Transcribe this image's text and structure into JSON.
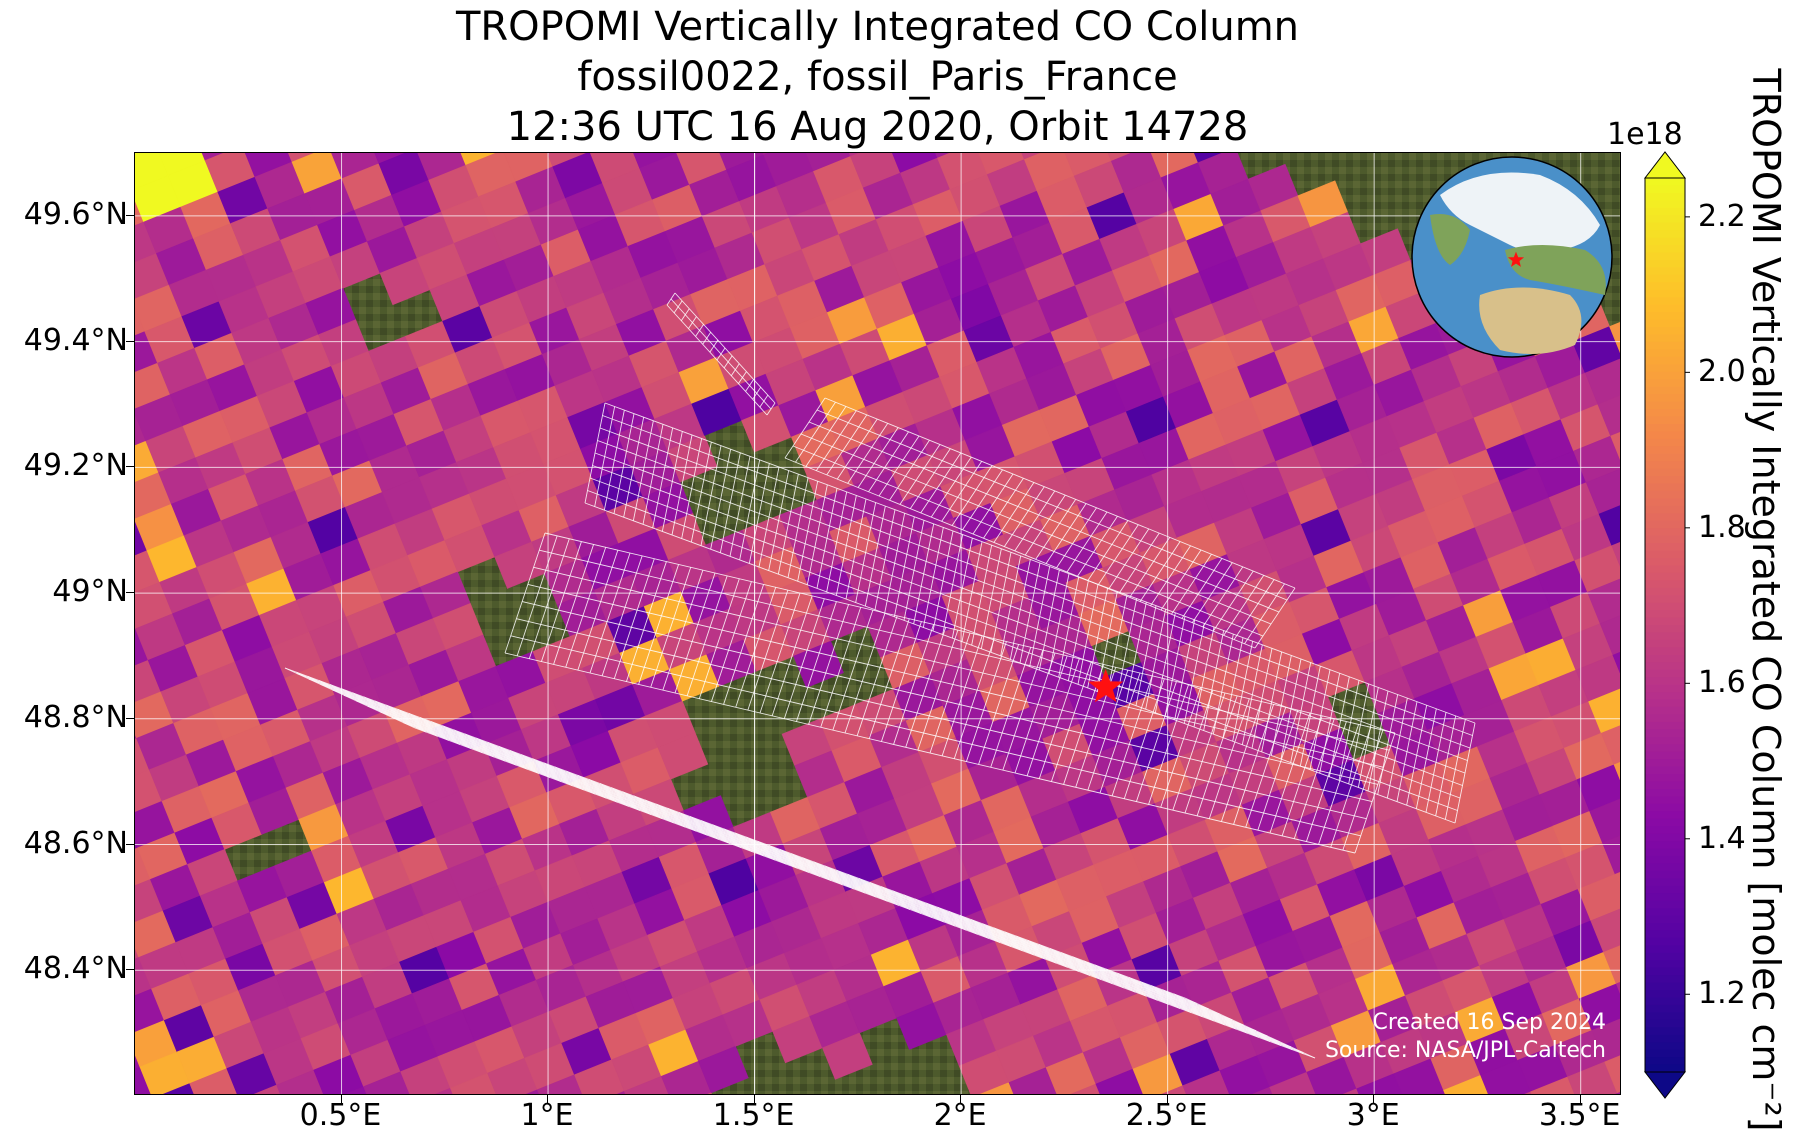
{
  "title": {
    "line1": "TROPOMI Vertically Integrated CO Column",
    "line2": "fossil0022, fossil_Paris_France",
    "line3": "12:36 UTC 16 Aug 2020, Orbit 14728"
  },
  "map": {
    "lat_range": [
      48.2,
      49.7
    ],
    "lon_range": [
      0.0,
      3.6
    ],
    "lat_ticks": [
      {
        "value": 49.6,
        "label": "49.6°N"
      },
      {
        "value": 49.4,
        "label": "49.4°N"
      },
      {
        "value": 49.2,
        "label": "49.2°N"
      },
      {
        "value": 49.0,
        "label": "49°N"
      },
      {
        "value": 48.8,
        "label": "48.8°N"
      },
      {
        "value": 48.6,
        "label": "48.6°N"
      },
      {
        "value": 48.4,
        "label": "48.4°N"
      }
    ],
    "lon_ticks": [
      {
        "value": 0.5,
        "label": "0.5°E"
      },
      {
        "value": 1.0,
        "label": "1°E"
      },
      {
        "value": 1.5,
        "label": "1.5°E"
      },
      {
        "value": 2.0,
        "label": "2°E"
      },
      {
        "value": 2.5,
        "label": "2.5°E"
      },
      {
        "value": 3.0,
        "label": "3°E"
      },
      {
        "value": 3.5,
        "label": "3.5°E"
      }
    ],
    "target": {
      "name": "fossil_Paris_France",
      "lon": 2.35,
      "lat": 48.85,
      "marker": "red-star"
    },
    "background": "satellite imagery",
    "credit_line1": "Created 16 Sep 2024",
    "credit_line2": "Source: NASA/JPL-Caltech"
  },
  "colorbar": {
    "label": "TROPOMI Vertically Integrated CO Column [molec cm⁻²]",
    "exponent": "1e18",
    "range": [
      1.1,
      2.25
    ],
    "ticks": [
      {
        "value": 1.2,
        "label": "1.2"
      },
      {
        "value": 1.4,
        "label": "1.4"
      },
      {
        "value": 1.6,
        "label": "1.6"
      },
      {
        "value": 1.8,
        "label": "1.8"
      },
      {
        "value": 2.0,
        "label": "2.0"
      },
      {
        "value": 2.2,
        "label": "2.2"
      }
    ],
    "colormap": "plasma",
    "colors": [
      "#0d0887",
      "#5302a3",
      "#8b0aa5",
      "#b83289",
      "#db5c68",
      "#f48849",
      "#febd2a",
      "#f0f921"
    ]
  },
  "inset_globe": {
    "marker": "red-star",
    "colors": {
      "ocean": "#4a90c9",
      "land": "#7fa35a",
      "desert": "#d8c08a",
      "ice": "#eef3f7"
    }
  }
}
